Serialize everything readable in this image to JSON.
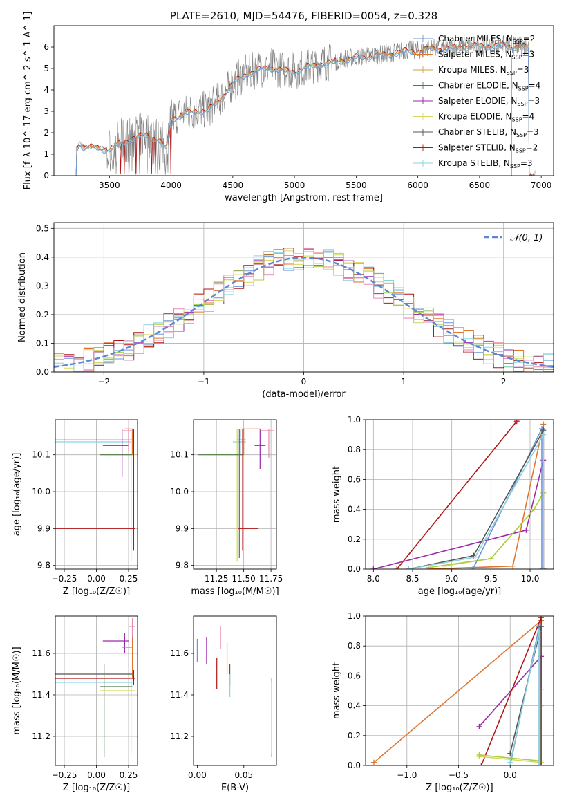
{
  "colors": {
    "Chabrier MILES": "#6f94d6",
    "Salpeter MILES": "#e0762e",
    "Kroupa MILES": "#c9a34a",
    "Chabrier ELODIE": "#4f7a4f",
    "Salpeter ELODIE": "#9a2aa8",
    "Kroupa ELODIE": "#d8d858",
    "Chabrier STELIB": "#555555",
    "Salpeter STELIB": "#b01515",
    "Kroupa STELIB": "#8ad2e0",
    "pink": "#e58ab0",
    "lime": "#a8d040",
    "data": "#808080",
    "gauss": "#5b86d6"
  },
  "chart_data": [
    {
      "id": "spectrum",
      "type": "line",
      "title": "PLATE=2610, MJD=54476, FIBERID=0054, z=0.328",
      "xlabel": "wavelength [Angstrom, rest frame]",
      "ylabel": "Flux [f_λ 10^-17 erg cm^-2 s^-1 A^-1]",
      "xlim": [
        3050,
        7100
      ],
      "ylim": [
        0,
        7
      ],
      "xticks": [
        3500,
        4000,
        4500,
        5000,
        5500,
        6000,
        6500,
        7000
      ],
      "yticks": [
        0,
        1,
        2,
        3,
        4,
        5,
        6
      ],
      "grid": false,
      "legend_position": "top-right",
      "legend": [
        {
          "text": "Chabrier MILES, N",
          "sub": "SSP",
          "tail": "=2",
          "marker": "plus"
        },
        {
          "text": "Salpeter MILES, N",
          "sub": "SSP",
          "tail": "=3",
          "marker": "plus"
        },
        {
          "text": "Kroupa MILES, N",
          "sub": "SSP",
          "tail": "=3",
          "marker": "plus"
        },
        {
          "text": "Chabrier ELODIE, N",
          "sub": "SSP",
          "tail": "=4",
          "marker": "plus"
        },
        {
          "text": "Salpeter ELODIE, N",
          "sub": "SSP",
          "tail": "=3",
          "marker": "plus"
        },
        {
          "text": "Kroupa ELODIE, N",
          "sub": "SSP",
          "tail": "=4",
          "marker": "plus"
        },
        {
          "text": "Chabrier STELIB, N",
          "sub": "SSP",
          "tail": "=3",
          "marker": "plus"
        },
        {
          "text": "Salpeter STELIB, N",
          "sub": "SSP",
          "tail": "=2",
          "marker": "plus"
        },
        {
          "text": "Kroupa STELIB, N",
          "sub": "SSP",
          "tail": "=3",
          "marker": "plus"
        }
      ],
      "model_knots": [
        [
          3230,
          0
        ],
        [
          3232,
          1.3
        ],
        [
          3260,
          1.55
        ],
        [
          3300,
          1.35
        ],
        [
          3400,
          1.35
        ],
        [
          3500,
          1.25
        ],
        [
          3600,
          1.6
        ],
        [
          3700,
          1.8
        ],
        [
          3800,
          1.95
        ],
        [
          3900,
          1.7
        ],
        [
          3960,
          1.3
        ],
        [
          4000,
          2.7
        ],
        [
          4100,
          2.9
        ],
        [
          4200,
          3.05
        ],
        [
          4300,
          3.1
        ],
        [
          4400,
          3.6
        ],
        [
          4500,
          4.35
        ],
        [
          4600,
          4.75
        ],
        [
          4700,
          4.95
        ],
        [
          4800,
          5.1
        ],
        [
          4900,
          4.95
        ],
        [
          5000,
          4.9
        ],
        [
          5100,
          5.1
        ],
        [
          5200,
          5.25
        ],
        [
          5300,
          5.3
        ],
        [
          5400,
          5.45
        ],
        [
          5500,
          5.55
        ],
        [
          5600,
          5.6
        ],
        [
          5700,
          5.65
        ],
        [
          5800,
          5.75
        ],
        [
          5900,
          5.85
        ],
        [
          6000,
          5.85
        ],
        [
          6100,
          5.95
        ],
        [
          6200,
          5.95
        ],
        [
          6300,
          6.0
        ],
        [
          6400,
          6.05
        ],
        [
          6500,
          6.1
        ],
        [
          6600,
          6.1
        ],
        [
          6700,
          6.1
        ],
        [
          6800,
          6.05
        ],
        [
          6900,
          6.05
        ]
      ],
      "data_range": [
        3230,
        6950
      ]
    },
    {
      "id": "residuals",
      "type": "step",
      "xlabel": "(data-model)/error",
      "ylabel": "Normed distribution",
      "xlim": [
        -2.5,
        2.5
      ],
      "ylim": [
        0,
        0.52
      ],
      "xticks": [
        -2,
        -1,
        0,
        1,
        2
      ],
      "yticks": [
        0.0,
        0.1,
        0.2,
        0.3,
        0.4,
        0.5
      ],
      "grid": true,
      "gaussian": {
        "mu": 0,
        "sigma": 1,
        "label": "𝒩(0, 1)"
      },
      "legend_position": "top-right"
    },
    {
      "id": "age-vs-Z",
      "type": "errorbar",
      "xlabel": "Z [log₁₀(Z/Z☉)]",
      "ylabel": "age  [log₁₀(age/yr)]",
      "xlim": [
        -0.32,
        0.32
      ],
      "ylim": [
        9.79,
        10.195
      ],
      "xticks": [
        -0.25,
        0.0,
        0.25
      ],
      "yticks": [
        9.8,
        9.9,
        10.0,
        10.1
      ],
      "grid": true,
      "points": [
        {
          "s": "Chabrier STELIB",
          "x": 0.28,
          "y": 10.14,
          "xl": -0.32,
          "xh": 0.28,
          "yl": 10.14,
          "yh": 10.14
        },
        {
          "s": "Kroupa STELIB",
          "x": 0.27,
          "y": 10.135,
          "xl": -0.32,
          "xh": 0.27,
          "yl": 10.135,
          "yh": 10.135
        },
        {
          "s": "Kroupa ELODIE",
          "x": 0.27,
          "y": 10.1,
          "xl": 0.03,
          "xh": 0.3,
          "yl": 9.81,
          "yh": 10.16
        },
        {
          "s": "Chabrier ELODIE",
          "x": 0.06,
          "y": 10.1,
          "xl": 0.03,
          "xh": 0.28,
          "yl": 10.1,
          "yh": 10.1
        },
        {
          "s": "Salpeter ELODIE",
          "x": 0.2,
          "y": 10.125,
          "xl": 0.05,
          "xh": 0.25,
          "yl": 10.04,
          "yh": 10.17
        },
        {
          "s": "Salpeter MILES",
          "x": 0.28,
          "y": 10.17,
          "xl": 0.22,
          "xh": 0.28,
          "yl": 10.1,
          "yh": 10.17
        },
        {
          "s": "pink",
          "x": 0.25,
          "y": 10.165,
          "xl": 0.2,
          "xh": 0.28,
          "yl": 10.11,
          "yh": 10.17
        },
        {
          "s": "Salpeter STELIB",
          "x": 0.29,
          "y": 9.9,
          "xl": -0.32,
          "xh": 0.3,
          "yl": 9.84,
          "yh": 10.17
        }
      ]
    },
    {
      "id": "age-vs-mass",
      "type": "errorbar",
      "xlabel": "mass [log₁₀(M/M☉)]",
      "ylabel": "",
      "xlim": [
        11.04,
        11.8
      ],
      "ylim": [
        9.79,
        10.195
      ],
      "xticks": [
        11.25,
        11.5,
        11.75
      ],
      "yticks": [
        9.8,
        9.9,
        10.0,
        10.1
      ],
      "grid": true,
      "points": [
        {
          "s": "Chabrier STELIB",
          "x": 11.47,
          "y": 10.14,
          "xl": 11.44,
          "xh": 11.52,
          "yl": 10.14,
          "yh": 10.14
        },
        {
          "s": "Kroupa STELIB",
          "x": 11.47,
          "y": 10.135,
          "xl": 11.4,
          "xh": 11.52,
          "yl": 10.1,
          "yh": 10.17
        },
        {
          "s": "Kroupa ELODIE",
          "x": 11.44,
          "y": 10.1,
          "xl": 11.12,
          "xh": 11.5,
          "yl": 9.81,
          "yh": 10.17
        },
        {
          "s": "Chabrier ELODIE",
          "x": 11.46,
          "y": 10.1,
          "xl": 11.08,
          "xh": 11.5,
          "yl": 9.82,
          "yh": 10.17
        },
        {
          "s": "Salpeter ELODIE",
          "x": 11.65,
          "y": 10.125,
          "xl": 11.6,
          "xh": 11.7,
          "yl": 10.06,
          "yh": 10.17
        },
        {
          "s": "Salpeter MILES",
          "x": 11.5,
          "y": 10.17,
          "xl": 11.48,
          "xh": 11.65,
          "yl": 10.1,
          "yh": 10.17
        },
        {
          "s": "pink",
          "x": 11.73,
          "y": 10.165,
          "xl": 11.65,
          "xh": 11.78,
          "yl": 10.09,
          "yh": 10.17
        },
        {
          "s": "Salpeter STELIB",
          "x": 11.49,
          "y": 9.9,
          "xl": 11.45,
          "xh": 11.63,
          "yl": 9.84,
          "yh": 10.17
        }
      ]
    },
    {
      "id": "mass-weight-vs-age",
      "type": "line",
      "xlabel": "age  [log₁₀(age/yr)]",
      "ylabel": "mass weight",
      "xlim": [
        7.9,
        10.3
      ],
      "ylim": [
        0,
        1
      ],
      "xticks": [
        8.0,
        8.5,
        9.0,
        9.5,
        10.0
      ],
      "yticks": [
        0.0,
        0.2,
        0.4,
        0.6,
        0.8,
        1.0
      ],
      "grid": true,
      "series": [
        {
          "s": "Salpeter STELIB",
          "x": [
            8.3,
            9.83
          ],
          "y": [
            0.0,
            0.99
          ]
        },
        {
          "s": "Salpeter ELODIE",
          "x": [
            8.0,
            9.95,
            10.17,
            10.17
          ],
          "y": [
            0.0,
            0.26,
            0.73,
            0.0
          ]
        },
        {
          "s": "Kroupa ELODIE",
          "x": [
            8.9,
            9.5,
            10.05,
            10.17,
            10.17
          ],
          "y": [
            0.02,
            0.07,
            0.4,
            0.51,
            0.0
          ]
        },
        {
          "s": "lime",
          "x": [
            8.7,
            9.5,
            10.05,
            10.17
          ],
          "y": [
            0.01,
            0.07,
            0.4,
            0.51
          ]
        },
        {
          "s": "Salpeter MILES",
          "x": [
            8.7,
            9.78,
            10.17,
            10.17
          ],
          "y": [
            0.0,
            0.02,
            0.97,
            0.0
          ]
        },
        {
          "s": "Chabrier MILES",
          "x": [
            9.27,
            10.15,
            10.15
          ],
          "y": [
            0.0,
            0.94,
            0.0
          ]
        },
        {
          "s": "Chabrier STELIB",
          "x": [
            8.45,
            9.28,
            10.17,
            10.17
          ],
          "y": [
            0.0,
            0.09,
            0.93,
            0.0
          ]
        },
        {
          "s": "Kroupa STELIB",
          "x": [
            8.45,
            9.3,
            10.17,
            10.17
          ],
          "y": [
            0.0,
            0.08,
            0.9,
            0.0
          ]
        }
      ]
    },
    {
      "id": "mass-vs-Z",
      "type": "errorbar",
      "xlabel": "Z [log₁₀(Z/Z☉)]",
      "ylabel": "mass [log₁₀(M/M☉)]",
      "xlim": [
        -0.32,
        0.32
      ],
      "ylim": [
        11.06,
        11.78
      ],
      "xticks": [
        -0.25,
        0.0,
        0.25
      ],
      "yticks": [
        11.2,
        11.4,
        11.6
      ],
      "grid": true,
      "points": [
        {
          "s": "pink",
          "x": 0.28,
          "y": 11.73,
          "xl": 0.25,
          "xh": 0.3,
          "yl": 11.68,
          "yh": 11.77
        },
        {
          "s": "Salpeter ELODIE",
          "x": 0.22,
          "y": 11.66,
          "xl": 0.05,
          "xh": 0.25,
          "yl": 11.6,
          "yh": 11.7
        },
        {
          "s": "Salpeter MILES",
          "x": 0.28,
          "y": 11.63,
          "xl": 0.2,
          "xh": 0.28,
          "yl": 11.48,
          "yh": 11.68
        },
        {
          "s": "Chabrier STELIB",
          "x": 0.28,
          "y": 11.5,
          "xl": -0.32,
          "xh": 0.28,
          "yl": 11.5,
          "yh": 11.5
        },
        {
          "s": "Salpeter STELIB",
          "x": 0.29,
          "y": 11.48,
          "xl": -0.32,
          "xh": 0.3,
          "yl": 11.45,
          "yh": 11.52
        },
        {
          "s": "Kroupa STELIB",
          "x": 0.27,
          "y": 11.46,
          "xl": -0.32,
          "xh": 0.28,
          "yl": 11.4,
          "yh": 11.46
        },
        {
          "s": "Chabrier ELODIE",
          "x": 0.06,
          "y": 11.44,
          "xl": 0.03,
          "xh": 0.28,
          "yl": 11.1,
          "yh": 11.55
        },
        {
          "s": "Kroupa ELODIE",
          "x": 0.27,
          "y": 11.42,
          "xl": 0.03,
          "xh": 0.3,
          "yl": 11.12,
          "yh": 11.48
        }
      ]
    },
    {
      "id": "mass-vs-ebv",
      "type": "errorbar",
      "xlabel": "E(B-V)",
      "ylabel": "",
      "xlim": [
        -0.004,
        0.085
      ],
      "ylim": [
        11.06,
        11.78
      ],
      "xticks": [
        0.0,
        0.05
      ],
      "yticks": [
        11.2,
        11.4,
        11.6
      ],
      "grid": false,
      "points": [
        {
          "s": "Chabrier MILES",
          "x": 0.0,
          "y": 11.62,
          "xl": 0.0,
          "xh": 0.0,
          "yl": 11.56,
          "yh": 11.67
        },
        {
          "s": "Salpeter ELODIE",
          "x": 0.01,
          "y": 11.61,
          "xl": 0.01,
          "xh": 0.01,
          "yl": 11.55,
          "yh": 11.68
        },
        {
          "s": "Salpeter STELIB",
          "x": 0.021,
          "y": 11.5,
          "xl": 0.021,
          "xh": 0.021,
          "yl": 11.43,
          "yh": 11.58
        },
        {
          "s": "pink",
          "x": 0.025,
          "y": 11.67,
          "xl": 0.025,
          "xh": 0.025,
          "yl": 11.62,
          "yh": 11.73
        },
        {
          "s": "Salpeter MILES",
          "x": 0.032,
          "y": 11.58,
          "xl": 0.032,
          "xh": 0.032,
          "yl": 11.5,
          "yh": 11.65
        },
        {
          "s": "Chabrier STELIB",
          "x": 0.035,
          "y": 11.5,
          "xl": 0.035,
          "xh": 0.035,
          "yl": 11.45,
          "yh": 11.55
        },
        {
          "s": "Kroupa STELIB",
          "x": 0.035,
          "y": 11.45,
          "xl": 0.035,
          "xh": 0.035,
          "yl": 11.39,
          "yh": 11.5
        },
        {
          "s": "Chabrier ELODIE",
          "x": 0.08,
          "y": 11.3,
          "xl": 0.08,
          "xh": 0.08,
          "yl": 11.1,
          "yh": 11.48
        },
        {
          "s": "Kroupa ELODIE",
          "x": 0.08,
          "y": 11.3,
          "xl": 0.08,
          "xh": 0.08,
          "yl": 11.12,
          "yh": 11.46
        }
      ]
    },
    {
      "id": "mass-weight-vs-Z",
      "type": "line",
      "xlabel": "Z [log₁₀(Z/Z☉)]",
      "ylabel": "mass weight",
      "xlim": [
        -1.4,
        0.42
      ],
      "ylim": [
        0,
        1
      ],
      "xticks": [
        -1.0,
        -0.5,
        0.0
      ],
      "yticks": [
        0.0,
        0.2,
        0.4,
        0.6,
        0.8,
        1.0
      ],
      "grid": true,
      "series": [
        {
          "s": "Salpeter MILES",
          "x": [
            -1.32,
            0.3
          ],
          "y": [
            0.02,
            0.97
          ]
        },
        {
          "s": "Salpeter ELODIE",
          "x": [
            -0.3,
            0.3,
            0.3
          ],
          "y": [
            0.26,
            0.73,
            0.0
          ]
        },
        {
          "s": "Salpeter STELIB",
          "x": [
            -0.28,
            0.3,
            0.3
          ],
          "y": [
            0.0,
            0.99,
            0.0
          ]
        },
        {
          "s": "Kroupa ELODIE",
          "x": [
            -0.3,
            0.3,
            0.3
          ],
          "y": [
            0.06,
            0.02,
            0.51
          ]
        },
        {
          "s": "lime",
          "x": [
            -0.3,
            0.3,
            0.3
          ],
          "y": [
            0.07,
            0.03,
            0.4
          ]
        },
        {
          "s": "Chabrier MILES",
          "x": [
            0.0,
            0.28,
            0.28
          ],
          "y": [
            0.0,
            0.93,
            0.0
          ]
        },
        {
          "s": "Chabrier STELIB",
          "x": [
            0.0,
            0.3,
            0.3
          ],
          "y": [
            0.08,
            0.93,
            0.0
          ]
        },
        {
          "s": "Kroupa STELIB",
          "x": [
            0.0,
            0.28,
            0.28
          ],
          "y": [
            0.02,
            0.9,
            0.0
          ]
        }
      ]
    }
  ]
}
